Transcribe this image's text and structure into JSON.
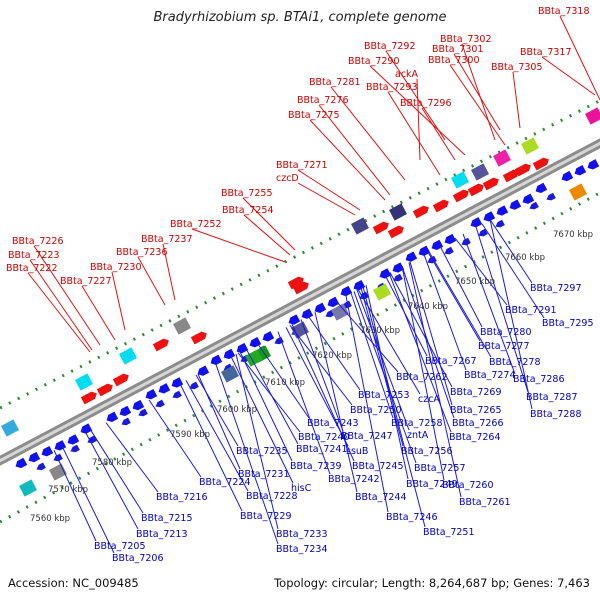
{
  "title": "Bradyrhizobium sp. BTAi1, complete genome",
  "accession": "Accession: NC_009485",
  "summary": "Topology: circular; Length: 8,264,687 bp; Genes: 7,463",
  "kbp_labels": [
    "7560 kbp",
    "7570 kbp",
    "7580 kbp",
    "7590 kbp",
    "7600 kbp",
    "7610 kbp",
    "7620 kbp",
    "7630 kbp",
    "7640 kbp",
    "7650 kbp",
    "7660 kbp",
    "7670 kbp"
  ],
  "top_labels": [
    "BBta_7318",
    "BBta_7302",
    "BBta_7301",
    "BBta_7292",
    "BBta_7300",
    "BBta_7317",
    "BBta_7290",
    "BBta_7305",
    "ackA",
    "BBta_7281",
    "BBta_7293",
    "BBta_7276",
    "BBta_7296",
    "BBta_7275",
    "BBta_7271",
    "czcD",
    "BBta_7255",
    "BBta_7254",
    "BBta_7252",
    "BBta_7237",
    "BBta_7226",
    "BBta_7236",
    "BBta_7223",
    "BBta_7230",
    "BBta_7222",
    "BBta_7227"
  ],
  "bottom_labels": [
    "BBta_7297",
    "BBta_7291",
    "BBta_7295",
    "BBta_7280",
    "BBta_7277",
    "BBta_7278",
    "BBta_7267",
    "BBta_7286",
    "BBta_7262",
    "BBta_7274",
    "BBta_7287",
    "BBta_7269",
    "BBta_7288",
    "BBta_7253",
    "czcA",
    "BBta_7265",
    "BBta_7243",
    "BBta_7250",
    "BBta_7258",
    "BBta_7266",
    "BBta_7240",
    "BBta_7247",
    "zntA",
    "BBta_7264",
    "BBta_7235",
    "BBta_7241",
    "ssuB",
    "BBta_7256",
    "BBta_7239",
    "BBta_7245",
    "BBta_7231",
    "BBta_7242",
    "BBta_7257",
    "BBta_7249",
    "BBta_7224",
    "hisC",
    "BBta_7260",
    "BBta_7216",
    "BBta_7228",
    "BBta_7244",
    "BBta_7261",
    "BBta_7229",
    "BBta_7246",
    "BBta_7215",
    "BBta_7251",
    "BBta_7233",
    "BBta_7213",
    "BBta_7234",
    "BBta_7205",
    "BBta_7206"
  ],
  "colors": {
    "forward_label": "#cc0000",
    "reverse_label": "#0000bb",
    "backbone": "#aaaaaa",
    "tick": "#2e8b2e"
  }
}
